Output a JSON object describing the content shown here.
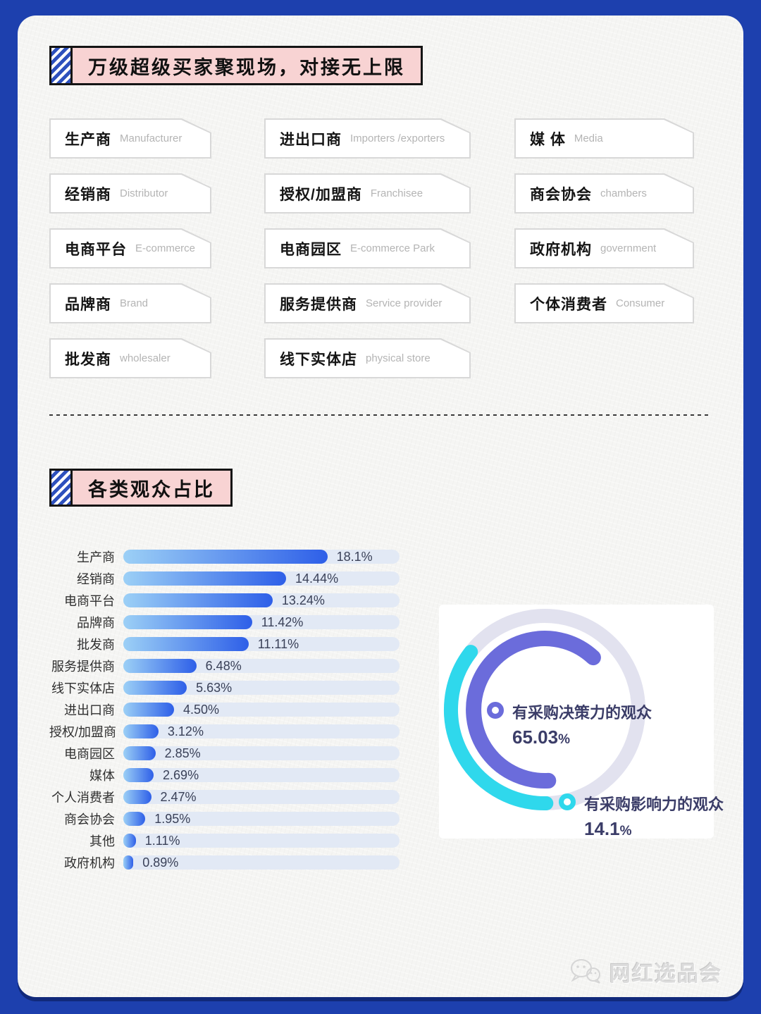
{
  "page": {
    "frame_color": "#1d40ae",
    "panel_color": "#f5f5f3",
    "accent_pink": "#f8d3d3",
    "accent_stripe_blue": "#2d50bd"
  },
  "section_buyers": {
    "title": "万级超级买家聚现场，对接无上限",
    "columns": [
      [
        {
          "cn": "生产商",
          "en": "Manufacturer"
        },
        {
          "cn": "经销商",
          "en": "Distributor"
        },
        {
          "cn": "电商平台",
          "en": "E-commerce"
        },
        {
          "cn": "品牌商",
          "en": "Brand"
        },
        {
          "cn": "批发商",
          "en": "wholesaler"
        }
      ],
      [
        {
          "cn": "进出口商",
          "en": "Importers /exporters"
        },
        {
          "cn": "授权/加盟商",
          "en": "Franchisee"
        },
        {
          "cn": "电商园区",
          "en": "E-commerce Park"
        },
        {
          "cn": "服务提供商",
          "en": "Service provider"
        },
        {
          "cn": "线下实体店",
          "en": "physical store"
        }
      ],
      [
        {
          "cn": "媒 体",
          "en": "Media"
        },
        {
          "cn": "商会协会",
          "en": "chambers"
        },
        {
          "cn": "政府机构",
          "en": "government"
        },
        {
          "cn": "个体消费者",
          "en": "Consumer"
        }
      ]
    ]
  },
  "section_audience": {
    "title": "各类观众占比"
  },
  "chart_data": [
    {
      "type": "bar",
      "orientation": "horizontal",
      "title": "各类观众占比",
      "categories": [
        "生产商",
        "经销商",
        "电商平台",
        "品牌商",
        "批发商",
        "服务提供商",
        "线下实体店",
        "进出口商",
        "授权/加盟商",
        "电商园区",
        "媒体",
        "个人消费者",
        "商会协会",
        "其他",
        "政府机构"
      ],
      "values": [
        18.1,
        14.44,
        13.24,
        11.42,
        11.11,
        6.48,
        5.63,
        4.5,
        3.12,
        2.85,
        2.69,
        2.47,
        1.95,
        1.11,
        0.89
      ],
      "labels": [
        "18.1%",
        "14.44%",
        "13.24%",
        "11.42%",
        "11.11%",
        "6.48%",
        "5.63%",
        "4.50%",
        "3.12%",
        "2.85%",
        "2.69%",
        "2.47%",
        "1.95%",
        "1.11%",
        "0.89%"
      ],
      "xlim": [
        0,
        24.5
      ],
      "grid": false,
      "legend": "none",
      "bar_gradient": [
        "#9cd0f6",
        "#2e5fe8"
      ],
      "track_color": "#e2e9f5"
    },
    {
      "type": "pie",
      "subtype": "decorative-donut",
      "unit": "%",
      "track_color": "#e2e2ef",
      "slices": [
        {
          "label": "有采购决策力的观众",
          "value": 65.03,
          "display": "65.03",
          "color": "#6b6cdb"
        },
        {
          "label": "有采购影响力的观众",
          "value": 14.1,
          "display": "14.1",
          "color": "#2fd8ec"
        }
      ],
      "arcs": {
        "track": {
          "r": 133,
          "width": 20
        },
        "decision": {
          "r": 101,
          "width": 22,
          "start_deg": 43,
          "sweep_deg": 226
        },
        "influence": {
          "r": 133,
          "width": 20,
          "start_deg": 308,
          "sweep_deg": 129
        }
      }
    }
  ],
  "watermark": {
    "text": "网红选品会",
    "logo": "wechat-icon"
  }
}
